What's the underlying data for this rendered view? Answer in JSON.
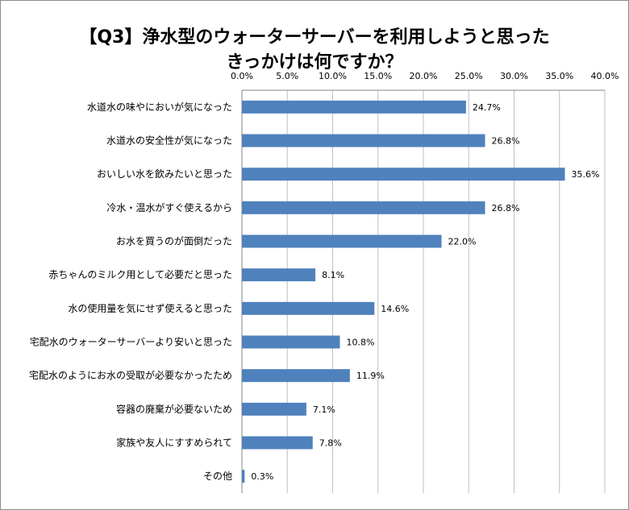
{
  "chart_data": {
    "type": "bar",
    "orientation": "horizontal",
    "title_lines": [
      "【Q3】浄水型のウォーターサーバーを利用しようと思った",
      "きっかけは何ですか？"
    ],
    "categories": [
      "水道水の味やにおいが気になった",
      "水道水の安全性が気になった",
      "おいしい水を飲みたいと思った",
      "冷水・温水がすぐ使えるから",
      "お水を買うのが面倒だった",
      "赤ちゃんのミルク用として必要だと思った",
      "水の使用量を気にせず使えると思った",
      "宅配水のウォーターサーバーより安いと思った",
      "宅配水のようにお水の受取が必要なかったため",
      "容器の廃棄が必要ないため",
      "家族や友人にすすめられて",
      "その他"
    ],
    "values": [
      24.7,
      26.8,
      35.6,
      26.8,
      22.0,
      8.1,
      14.6,
      10.8,
      11.9,
      7.1,
      7.8,
      0.3
    ],
    "data_labels": [
      "24.7%",
      "26.8%",
      "35.6%",
      "26.8%",
      "22.0%",
      "8.1%",
      "14.6%",
      "10.8%",
      "11.9%",
      "7.1%",
      "7.8%",
      "0.3%"
    ],
    "xlim": [
      0,
      40
    ],
    "x_ticks": [
      "0.0%",
      "5.0%",
      "10.0%",
      "15.0%",
      "20.0%",
      "25.0%",
      "30.0%",
      "35.0%",
      "40.0%"
    ],
    "x_axis_position": "top",
    "grid": true,
    "bar_color": "#4f81bd",
    "grid_color": "#bfbfbf"
  }
}
